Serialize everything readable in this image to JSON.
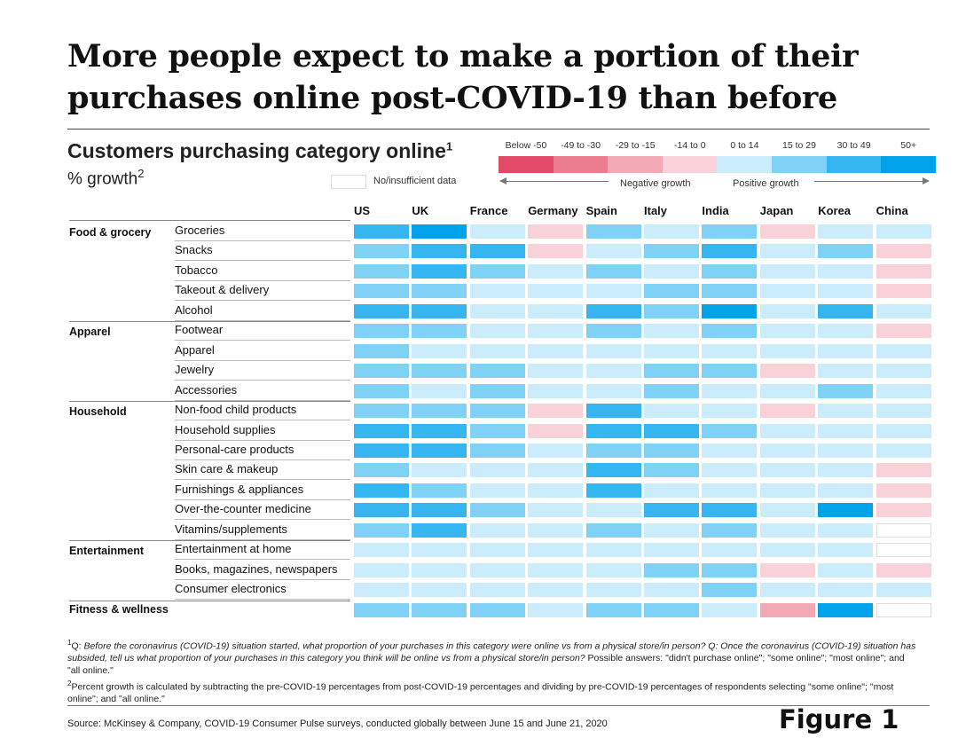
{
  "title": "More people expect to make a portion of their purchases online post-COVID-19 than before",
  "chart_data": {
    "type": "heatmap",
    "title": "Customers purchasing category online",
    "title_footnote": "1",
    "unit": "% growth",
    "unit_footnote": "2",
    "legend": {
      "buckets": [
        {
          "label": "Below -50",
          "color": "#e04a66"
        },
        {
          "label": "-49 to -30",
          "color": "#ec7d91"
        },
        {
          "label": "-29 to -15",
          "color": "#f2a9b5"
        },
        {
          "label": "-14 to 0",
          "color": "#f9d1d9"
        },
        {
          "label": "0 to 14",
          "color": "#cbecfb"
        },
        {
          "label": "15 to 29",
          "color": "#80d1f6"
        },
        {
          "label": "30 to 49",
          "color": "#35b6f1"
        },
        {
          "label": "50+",
          "color": "#00a2ea"
        }
      ],
      "no_data_label": "No/insufficient data",
      "negative_label": "Negative growth",
      "positive_label": "Positive growth"
    },
    "columns": [
      "US",
      "UK",
      "France",
      "Germany",
      "Spain",
      "Italy",
      "India",
      "Japan",
      "Korea",
      "China"
    ],
    "rows": [
      {
        "group": "Food & grocery",
        "label": "Groceries",
        "values": [
          "30 to 49",
          "50+",
          "0 to 14",
          "-14 to 0",
          "15 to 29",
          "0 to 14",
          "15 to 29",
          "-14 to 0",
          "0 to 14",
          "0 to 14"
        ]
      },
      {
        "group": "",
        "label": "Snacks",
        "values": [
          "15 to 29",
          "30 to 49",
          "30 to 49",
          "-14 to 0",
          "0 to 14",
          "15 to 29",
          "30 to 49",
          "0 to 14",
          "15 to 29",
          "-14 to 0"
        ]
      },
      {
        "group": "",
        "label": "Tobacco",
        "values": [
          "15 to 29",
          "30 to 49",
          "15 to 29",
          "0 to 14",
          "15 to 29",
          "0 to 14",
          "15 to 29",
          "0 to 14",
          "0 to 14",
          "-14 to 0"
        ]
      },
      {
        "group": "",
        "label": "Takeout & delivery",
        "values": [
          "15 to 29",
          "15 to 29",
          "0 to 14",
          "0 to 14",
          "0 to 14",
          "15 to 29",
          "15 to 29",
          "0 to 14",
          "0 to 14",
          "-14 to 0"
        ]
      },
      {
        "group": "",
        "label": "Alcohol",
        "values": [
          "30 to 49",
          "30 to 49",
          "0 to 14",
          "0 to 14",
          "30 to 49",
          "15 to 29",
          "50+",
          "0 to 14",
          "30 to 49",
          "0 to 14"
        ]
      },
      {
        "group": "Apparel",
        "label": "Footwear",
        "values": [
          "15 to 29",
          "15 to 29",
          "0 to 14",
          "0 to 14",
          "15 to 29",
          "0 to 14",
          "15 to 29",
          "0 to 14",
          "0 to 14",
          "-14 to 0"
        ]
      },
      {
        "group": "",
        "label": "Apparel",
        "values": [
          "15 to 29",
          "0 to 14",
          "0 to 14",
          "0 to 14",
          "0 to 14",
          "0 to 14",
          "0 to 14",
          "0 to 14",
          "0 to 14",
          "0 to 14"
        ]
      },
      {
        "group": "",
        "label": "Jewelry",
        "values": [
          "15 to 29",
          "15 to 29",
          "15 to 29",
          "0 to 14",
          "0 to 14",
          "15 to 29",
          "15 to 29",
          "-14 to 0",
          "0 to 14",
          "0 to 14"
        ]
      },
      {
        "group": "",
        "label": "Accessories",
        "values": [
          "15 to 29",
          "0 to 14",
          "15 to 29",
          "0 to 14",
          "0 to 14",
          "15 to 29",
          "0 to 14",
          "0 to 14",
          "15 to 29",
          "0 to 14"
        ]
      },
      {
        "group": "Household",
        "label": "Non-food child products",
        "values": [
          "15 to 29",
          "15 to 29",
          "15 to 29",
          "-14 to 0",
          "30 to 49",
          "0 to 14",
          "0 to 14",
          "-14 to 0",
          "0 to 14",
          "0 to 14"
        ]
      },
      {
        "group": "",
        "label": "Household supplies",
        "values": [
          "30 to 49",
          "30 to 49",
          "15 to 29",
          "-14 to 0",
          "30 to 49",
          "30 to 49",
          "15 to 29",
          "0 to 14",
          "0 to 14",
          "0 to 14"
        ]
      },
      {
        "group": "",
        "label": "Personal-care products",
        "values": [
          "30 to 49",
          "30 to 49",
          "15 to 29",
          "0 to 14",
          "15 to 29",
          "15 to 29",
          "0 to 14",
          "0 to 14",
          "0 to 14",
          "0 to 14"
        ]
      },
      {
        "group": "",
        "label": "Skin care & makeup",
        "values": [
          "15 to 29",
          "0 to 14",
          "0 to 14",
          "0 to 14",
          "30 to 49",
          "15 to 29",
          "0 to 14",
          "0 to 14",
          "0 to 14",
          "-14 to 0"
        ]
      },
      {
        "group": "",
        "label": "Furnishings & appliances",
        "values": [
          "30 to 49",
          "15 to 29",
          "0 to 14",
          "0 to 14",
          "30 to 49",
          "0 to 14",
          "0 to 14",
          "0 to 14",
          "0 to 14",
          "-14 to 0"
        ]
      },
      {
        "group": "",
        "label": "Over-the-counter medicine",
        "values": [
          "30 to 49",
          "30 to 49",
          "15 to 29",
          "0 to 14",
          "0 to 14",
          "30 to 49",
          "30 to 49",
          "0 to 14",
          "50+",
          "-14 to 0"
        ]
      },
      {
        "group": "",
        "label": "Vitamins/supplements",
        "values": [
          "15 to 29",
          "30 to 49",
          "0 to 14",
          "0 to 14",
          "15 to 29",
          "0 to 14",
          "15 to 29",
          "0 to 14",
          "0 to 14",
          null
        ]
      },
      {
        "group": "Entertainment",
        "label": "Entertainment at home",
        "values": [
          "0 to 14",
          "0 to 14",
          "0 to 14",
          "0 to 14",
          "0 to 14",
          "0 to 14",
          "0 to 14",
          "0 to 14",
          "0 to 14",
          null
        ]
      },
      {
        "group": "",
        "label": "Books, magazines, newspapers",
        "values": [
          "0 to 14",
          "0 to 14",
          "0 to 14",
          "0 to 14",
          "0 to 14",
          "15 to 29",
          "15 to 29",
          "-14 to 0",
          "0 to 14",
          "-14 to 0"
        ]
      },
      {
        "group": "",
        "label": "Consumer electronics",
        "values": [
          "0 to 14",
          "0 to 14",
          "0 to 14",
          "0 to 14",
          "0 to 14",
          "0 to 14",
          "15 to 29",
          "0 to 14",
          "0 to 14",
          "0 to 14"
        ]
      },
      {
        "group": "Fitness & wellness",
        "label": "",
        "values": [
          "15 to 29",
          "15 to 29",
          "15 to 29",
          "0 to 14",
          "15 to 29",
          "15 to 29",
          "0 to 14",
          "-29 to -15",
          "50+",
          null
        ]
      }
    ]
  },
  "footnotes": {
    "note1_marker": "1",
    "note1_prefix": "Q: ",
    "note1_text": "Before the coronavirus (COVID-19) situation started, what proportion of your purchases in this category were online vs from a physical store/in person? Q: Once the coronavirus (COVID-19) situation has subsided, tell us what proportion of your purchases in this category you think will be online vs from a physical store/in person?",
    "note1_answers": " Possible answers: \"didn't purchase online\"; \"some online\"; \"most online\"; and \"all online.\"",
    "note2_marker": "2",
    "note2_text": "Percent growth is calculated by subtracting the pre-COVID-19 percentages from post-COVID-19 percentages and dividing by pre-COVID-19 percentages of respondents selecting \"some online\"; \"most online\"; and \"all online.\""
  },
  "source": "Source: McKinsey & Company, COVID-19 Consumer Pulse surveys, conducted globally between June 15 and June 21, 2020",
  "figure_label": "Figure 1"
}
